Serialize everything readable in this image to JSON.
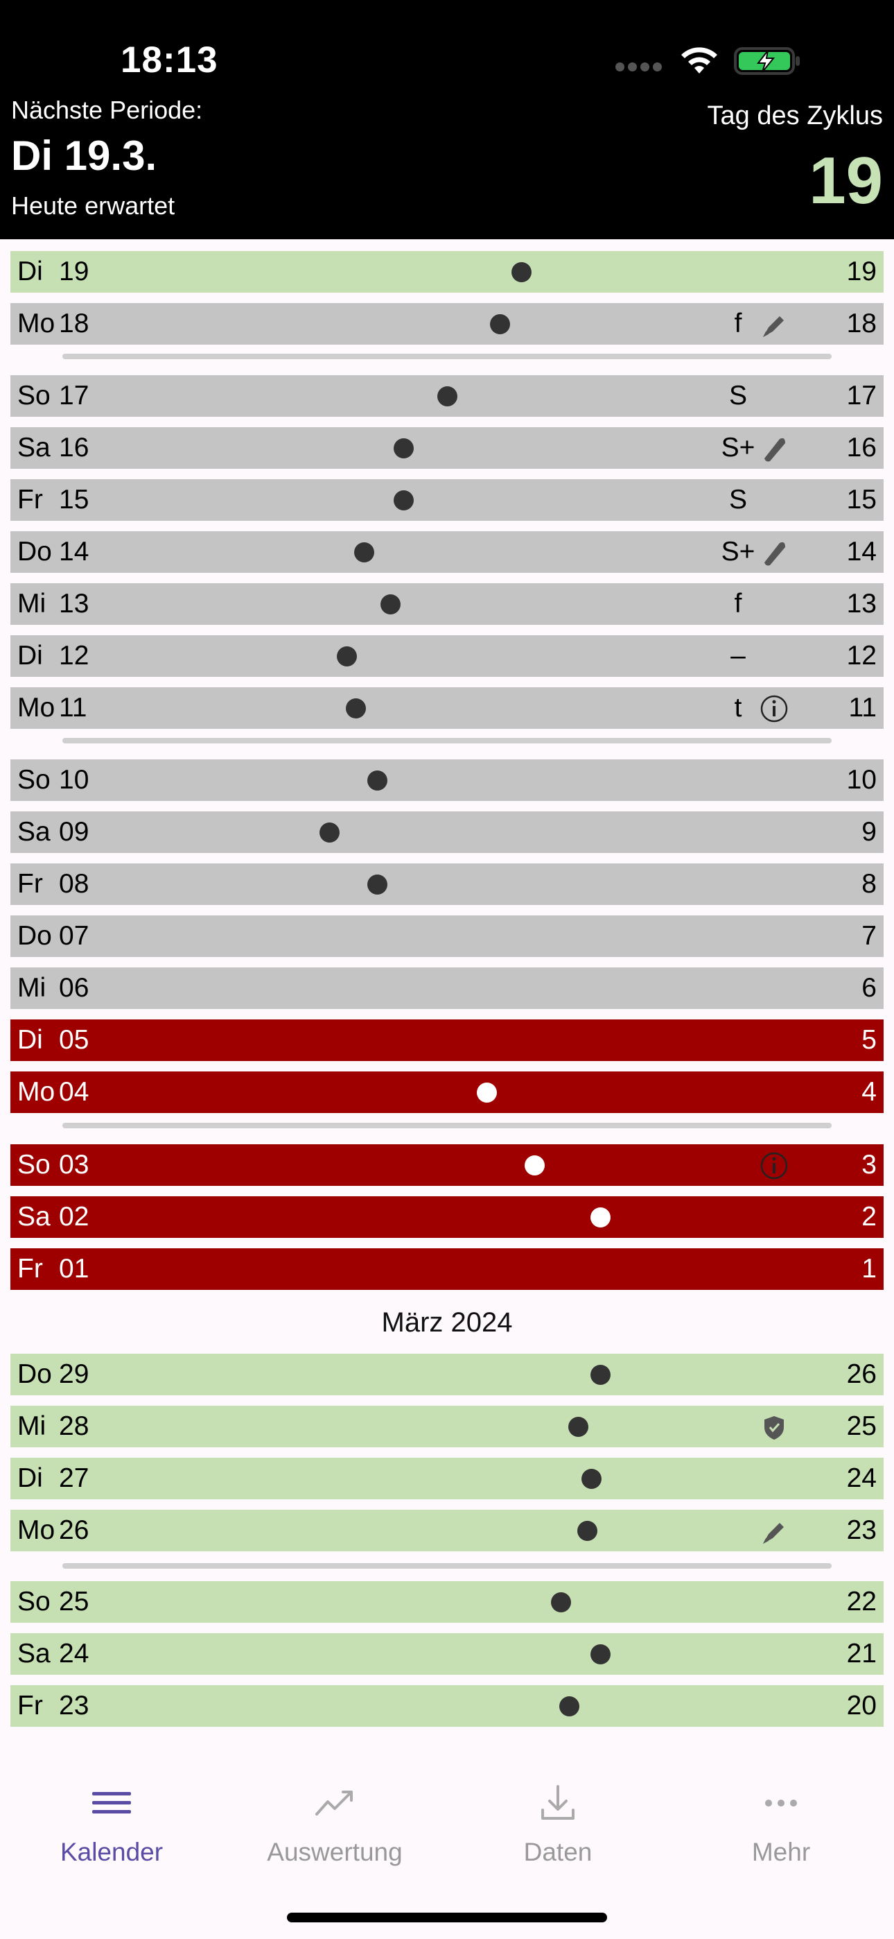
{
  "status_bar": {
    "time": "18:13"
  },
  "header": {
    "next_period_label": "Nächste Periode:",
    "next_period_date": "Di 19.3.",
    "next_period_sub": "Heute erwartet",
    "cycle_day_label": "Tag des Zyklus",
    "cycle_day_value": "19"
  },
  "rows": [
    {
      "weekday": "Di",
      "day": "19",
      "mark": "",
      "icon": "",
      "cycle_day": "19",
      "color": "green"
    },
    {
      "weekday": "Mo",
      "day": "18",
      "mark": "f",
      "icon": "pen-icon",
      "cycle_day": "18",
      "color": "gray"
    },
    {
      "weekday": "So",
      "day": "17",
      "mark": "S",
      "icon": "",
      "cycle_day": "17",
      "color": "gray"
    },
    {
      "weekday": "Sa",
      "day": "16",
      "mark": "S+",
      "icon": "tampon-icon",
      "cycle_day": "16",
      "color": "gray"
    },
    {
      "weekday": "Fr",
      "day": "15",
      "mark": "S",
      "icon": "",
      "cycle_day": "15",
      "color": "gray"
    },
    {
      "weekday": "Do",
      "day": "14",
      "mark": "S+",
      "icon": "tampon-icon",
      "cycle_day": "14",
      "color": "gray"
    },
    {
      "weekday": "Mi",
      "day": "13",
      "mark": "f",
      "icon": "",
      "cycle_day": "13",
      "color": "gray"
    },
    {
      "weekday": "Di",
      "day": "12",
      "mark": "–",
      "icon": "",
      "cycle_day": "12",
      "color": "gray"
    },
    {
      "weekday": "Mo",
      "day": "11",
      "mark": "t",
      "icon": "info-icon",
      "cycle_day": "11",
      "color": "gray"
    },
    {
      "weekday": "So",
      "day": "10",
      "mark": "",
      "icon": "",
      "cycle_day": "10",
      "color": "gray"
    },
    {
      "weekday": "Sa",
      "day": "09",
      "mark": "",
      "icon": "",
      "cycle_day": "9",
      "color": "gray"
    },
    {
      "weekday": "Fr",
      "day": "08",
      "mark": "",
      "icon": "",
      "cycle_day": "8",
      "color": "gray"
    },
    {
      "weekday": "Do",
      "day": "07",
      "mark": "",
      "icon": "",
      "cycle_day": "7",
      "color": "gray"
    },
    {
      "weekday": "Mi",
      "day": "06",
      "mark": "",
      "icon": "",
      "cycle_day": "6",
      "color": "gray"
    },
    {
      "weekday": "Di",
      "day": "05",
      "mark": "",
      "icon": "",
      "cycle_day": "5",
      "color": "red"
    },
    {
      "weekday": "Mo",
      "day": "04",
      "mark": "",
      "icon": "",
      "cycle_day": "4",
      "color": "red"
    },
    {
      "weekday": "So",
      "day": "03",
      "mark": "",
      "icon": "info-icon",
      "cycle_day": "3",
      "color": "red"
    },
    {
      "weekday": "Sa",
      "day": "02",
      "mark": "",
      "icon": "",
      "cycle_day": "2",
      "color": "red"
    },
    {
      "weekday": "Fr",
      "day": "01",
      "mark": "",
      "icon": "",
      "cycle_day": "1",
      "color": "red"
    },
    {
      "weekday": "Do",
      "day": "29",
      "mark": "",
      "icon": "",
      "cycle_day": "26",
      "color": "green"
    },
    {
      "weekday": "Mi",
      "day": "28",
      "mark": "",
      "icon": "shield-icon",
      "cycle_day": "25",
      "color": "green"
    },
    {
      "weekday": "Di",
      "day": "27",
      "mark": "",
      "icon": "",
      "cycle_day": "24",
      "color": "green"
    },
    {
      "weekday": "Mo",
      "day": "26",
      "mark": "",
      "icon": "pen-icon",
      "cycle_day": "23",
      "color": "green"
    },
    {
      "weekday": "So",
      "day": "25",
      "mark": "",
      "icon": "",
      "cycle_day": "22",
      "color": "green"
    },
    {
      "weekday": "Sa",
      "day": "24",
      "mark": "",
      "icon": "",
      "cycle_day": "21",
      "color": "green"
    },
    {
      "weekday": "Fr",
      "day": "23",
      "mark": "",
      "icon": "",
      "cycle_day": "20",
      "color": "green"
    }
  ],
  "temperature_dots": [
    {
      "row": 0,
      "level": 0.585
    },
    {
      "row": 1,
      "level": 0.56
    },
    {
      "row": 2,
      "level": 0.5
    },
    {
      "row": 3,
      "level": 0.45
    },
    {
      "row": 4,
      "level": 0.45
    },
    {
      "row": 5,
      "level": 0.405
    },
    {
      "row": 6,
      "level": 0.435
    },
    {
      "row": 7,
      "level": 0.385
    },
    {
      "row": 8,
      "level": 0.395
    },
    {
      "row": 9,
      "level": 0.42
    },
    {
      "row": 10,
      "level": 0.365
    },
    {
      "row": 11,
      "level": 0.42
    },
    {
      "row": 15,
      "level": 0.545
    },
    {
      "row": 16,
      "level": 0.6
    },
    {
      "row": 17,
      "level": 0.675
    },
    {
      "row": 19,
      "level": 0.675
    },
    {
      "row": 20,
      "level": 0.65
    },
    {
      "row": 21,
      "level": 0.665
    },
    {
      "row": 22,
      "level": 0.66
    },
    {
      "row": 23,
      "level": 0.63
    },
    {
      "row": 24,
      "level": 0.675
    },
    {
      "row": 25,
      "level": 0.64
    }
  ],
  "month_label": "März 2024",
  "tabs": [
    {
      "label": "Kalender",
      "icon": "menu-icon",
      "active": true
    },
    {
      "label": "Auswertung",
      "icon": "chart-icon",
      "active": false
    },
    {
      "label": "Daten",
      "icon": "download-icon",
      "active": false
    },
    {
      "label": "Mehr",
      "icon": "more-icon",
      "active": false
    }
  ],
  "colors": {
    "green": "#c6e0b4",
    "gray": "#c4c4c4",
    "red": "#9e0000",
    "accent": "#5a4ca5",
    "cycle_highlight": "#c7e3b6"
  }
}
